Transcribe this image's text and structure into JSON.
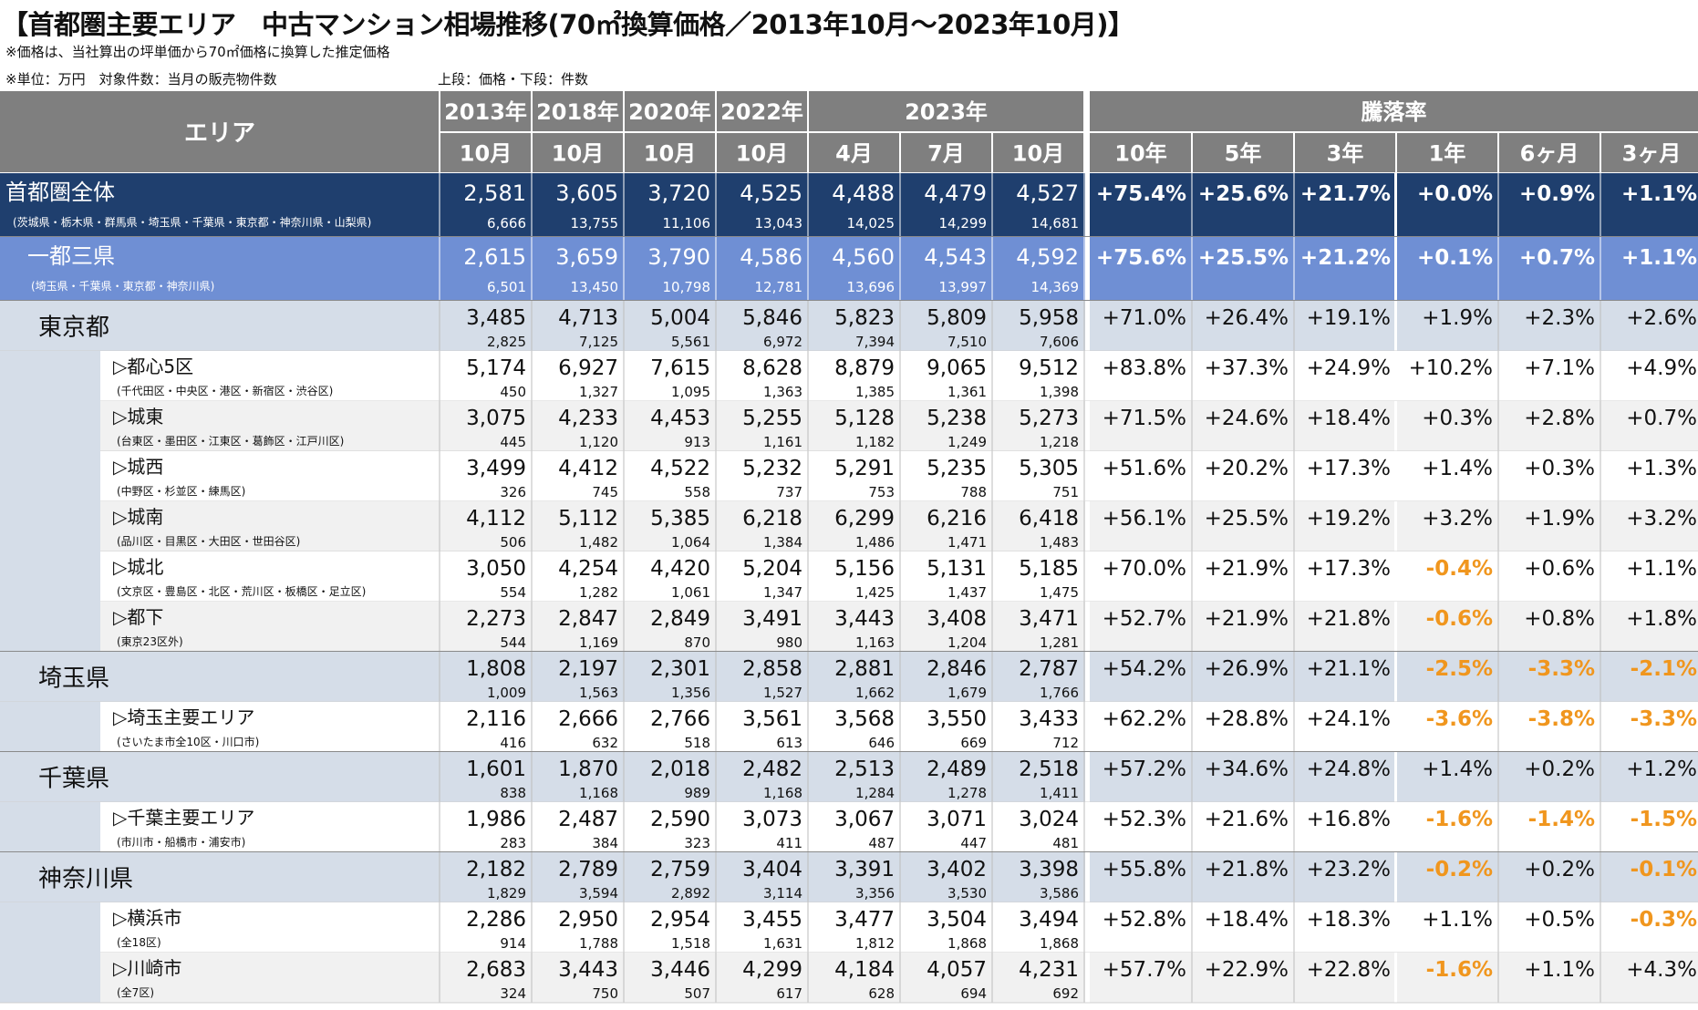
{
  "header": {
    "title": "【首都圏主要エリア　中古マンション相場推移(70㎡換算価格／2013年10月～2023年10月)】",
    "note_price": "※価格は、当社算出の坪単価から70㎡価格に換算した推定価格",
    "note_unit": "※単位：万円　対象件数：当月の販売物件数",
    "note_rows": "上段：価格・下段：件数"
  },
  "colors": {
    "header_bg": "#7f7f7f",
    "total_bg": "#1f3f6e",
    "metro_bg": "#6f8fd4",
    "pref_bg": "#d5dde8",
    "sub_alt_bg": "#f1f1f1",
    "negative": "#f0961e"
  },
  "chart_data": {
    "type": "table",
    "title": "【首都圏主要エリア　中古マンション相場推移(70㎡換算価格／2013年10月～2023年10月)】",
    "area_header": "エリア",
    "period_groups": [
      {
        "label": "2013年",
        "months": [
          "10月"
        ]
      },
      {
        "label": "2018年",
        "months": [
          "10月"
        ]
      },
      {
        "label": "2020年",
        "months": [
          "10月"
        ]
      },
      {
        "label": "2022年",
        "months": [
          "10月"
        ]
      },
      {
        "label": "2023年",
        "months": [
          "4月",
          "7月",
          "10月"
        ]
      }
    ],
    "rate_header": "騰落率",
    "rate_columns": [
      "10年",
      "5年",
      "3年",
      "1年",
      "6ヶ月",
      "3ヶ月"
    ],
    "rows": [
      {
        "level": "total",
        "name": "首都圏全体",
        "sub": "(茨城県・栃木県・群馬県・埼玉県・千葉県・東京都・神奈川県・山梨県)",
        "prices": [
          2581,
          3605,
          3720,
          4525,
          4488,
          4479,
          4527
        ],
        "counts": [
          6666,
          13755,
          11106,
          13043,
          14025,
          14299,
          14681
        ],
        "rates": [
          75.4,
          25.6,
          21.7,
          0.0,
          0.9,
          1.1
        ]
      },
      {
        "level": "metro",
        "name": "一都三県",
        "sub": "(埼玉県・千葉県・東京都・神奈川県)",
        "prices": [
          2615,
          3659,
          3790,
          4586,
          4560,
          4543,
          4592
        ],
        "counts": [
          6501,
          13450,
          10798,
          12781,
          13696,
          13997,
          14369
        ],
        "rates": [
          75.6,
          25.5,
          21.2,
          0.1,
          0.7,
          1.1
        ]
      },
      {
        "level": "pref",
        "name": "東京都",
        "sub": "",
        "prices": [
          3485,
          4713,
          5004,
          5846,
          5823,
          5809,
          5958
        ],
        "counts": [
          2825,
          7125,
          5561,
          6972,
          7394,
          7510,
          7606
        ],
        "rates": [
          71.0,
          26.4,
          19.1,
          1.9,
          2.3,
          2.6
        ]
      },
      {
        "level": "sub",
        "name": "▷都心5区",
        "sub": "(千代田区・中央区・港区・新宿区・渋谷区)",
        "prices": [
          5174,
          6927,
          7615,
          8628,
          8879,
          9065,
          9512
        ],
        "counts": [
          450,
          1327,
          1095,
          1363,
          1385,
          1361,
          1398
        ],
        "rates": [
          83.8,
          37.3,
          24.9,
          10.2,
          7.1,
          4.9
        ]
      },
      {
        "level": "sub",
        "name": "▷城東",
        "sub": "(台東区・墨田区・江東区・葛飾区・江戸川区)",
        "prices": [
          3075,
          4233,
          4453,
          5255,
          5128,
          5238,
          5273
        ],
        "counts": [
          445,
          1120,
          913,
          1161,
          1182,
          1249,
          1218
        ],
        "rates": [
          71.5,
          24.6,
          18.4,
          0.3,
          2.8,
          0.7
        ]
      },
      {
        "level": "sub",
        "name": "▷城西",
        "sub": "(中野区・杉並区・練馬区)",
        "prices": [
          3499,
          4412,
          4522,
          5232,
          5291,
          5235,
          5305
        ],
        "counts": [
          326,
          745,
          558,
          737,
          753,
          788,
          751
        ],
        "rates": [
          51.6,
          20.2,
          17.3,
          1.4,
          0.3,
          1.3
        ]
      },
      {
        "level": "sub",
        "name": "▷城南",
        "sub": "(品川区・目黒区・大田区・世田谷区)",
        "prices": [
          4112,
          5112,
          5385,
          6218,
          6299,
          6216,
          6418
        ],
        "counts": [
          506,
          1482,
          1064,
          1384,
          1486,
          1471,
          1483
        ],
        "rates": [
          56.1,
          25.5,
          19.2,
          3.2,
          1.9,
          3.2
        ]
      },
      {
        "level": "sub",
        "name": "▷城北",
        "sub": "(文京区・豊島区・北区・荒川区・板橋区・足立区)",
        "prices": [
          3050,
          4254,
          4420,
          5204,
          5156,
          5131,
          5185
        ],
        "counts": [
          554,
          1282,
          1061,
          1347,
          1425,
          1437,
          1475
        ],
        "rates": [
          70.0,
          21.9,
          17.3,
          -0.4,
          0.6,
          1.1
        ]
      },
      {
        "level": "sub",
        "name": "▷都下",
        "sub": "(東京23区外)",
        "prices": [
          2273,
          2847,
          2849,
          3491,
          3443,
          3408,
          3471
        ],
        "counts": [
          544,
          1169,
          870,
          980,
          1163,
          1204,
          1281
        ],
        "rates": [
          52.7,
          21.9,
          21.8,
          -0.6,
          0.8,
          1.8
        ]
      },
      {
        "level": "pref",
        "name": "埼玉県",
        "sub": "",
        "prices": [
          1808,
          2197,
          2301,
          2858,
          2881,
          2846,
          2787
        ],
        "counts": [
          1009,
          1563,
          1356,
          1527,
          1662,
          1679,
          1766
        ],
        "rates": [
          54.2,
          26.9,
          21.1,
          -2.5,
          -3.3,
          -2.1
        ]
      },
      {
        "level": "sub",
        "name": "▷埼玉主要エリア",
        "sub": "(さいたま市全10区・川口市)",
        "prices": [
          2116,
          2666,
          2766,
          3561,
          3568,
          3550,
          3433
        ],
        "counts": [
          416,
          632,
          518,
          613,
          646,
          669,
          712
        ],
        "rates": [
          62.2,
          28.8,
          24.1,
          -3.6,
          -3.8,
          -3.3
        ]
      },
      {
        "level": "pref",
        "name": "千葉県",
        "sub": "",
        "prices": [
          1601,
          1870,
          2018,
          2482,
          2513,
          2489,
          2518
        ],
        "counts": [
          838,
          1168,
          989,
          1168,
          1284,
          1278,
          1411
        ],
        "rates": [
          57.2,
          34.6,
          24.8,
          1.4,
          0.2,
          1.2
        ]
      },
      {
        "level": "sub",
        "name": "▷千葉主要エリア",
        "sub": "(市川市・船橋市・浦安市)",
        "prices": [
          1986,
          2487,
          2590,
          3073,
          3067,
          3071,
          3024
        ],
        "counts": [
          283,
          384,
          323,
          411,
          487,
          447,
          481
        ],
        "rates": [
          52.3,
          21.6,
          16.8,
          -1.6,
          -1.4,
          -1.5
        ]
      },
      {
        "level": "pref",
        "name": "神奈川県",
        "sub": "",
        "prices": [
          2182,
          2789,
          2759,
          3404,
          3391,
          3402,
          3398
        ],
        "counts": [
          1829,
          3594,
          2892,
          3114,
          3356,
          3530,
          3586
        ],
        "rates": [
          55.8,
          21.8,
          23.2,
          -0.2,
          0.2,
          -0.1
        ]
      },
      {
        "level": "sub",
        "name": "▷横浜市",
        "sub": "(全18区)",
        "prices": [
          2286,
          2950,
          2954,
          3455,
          3477,
          3504,
          3494
        ],
        "counts": [
          914,
          1788,
          1518,
          1631,
          1812,
          1868,
          1868
        ],
        "rates": [
          52.8,
          18.4,
          18.3,
          1.1,
          0.5,
          -0.3
        ]
      },
      {
        "level": "sub",
        "name": "▷川崎市",
        "sub": "(全7区)",
        "prices": [
          2683,
          3443,
          3446,
          4299,
          4184,
          4057,
          4231
        ],
        "counts": [
          324,
          750,
          507,
          617,
          628,
          694,
          692
        ],
        "rates": [
          57.7,
          22.9,
          22.8,
          -1.6,
          1.1,
          4.3
        ]
      }
    ]
  }
}
